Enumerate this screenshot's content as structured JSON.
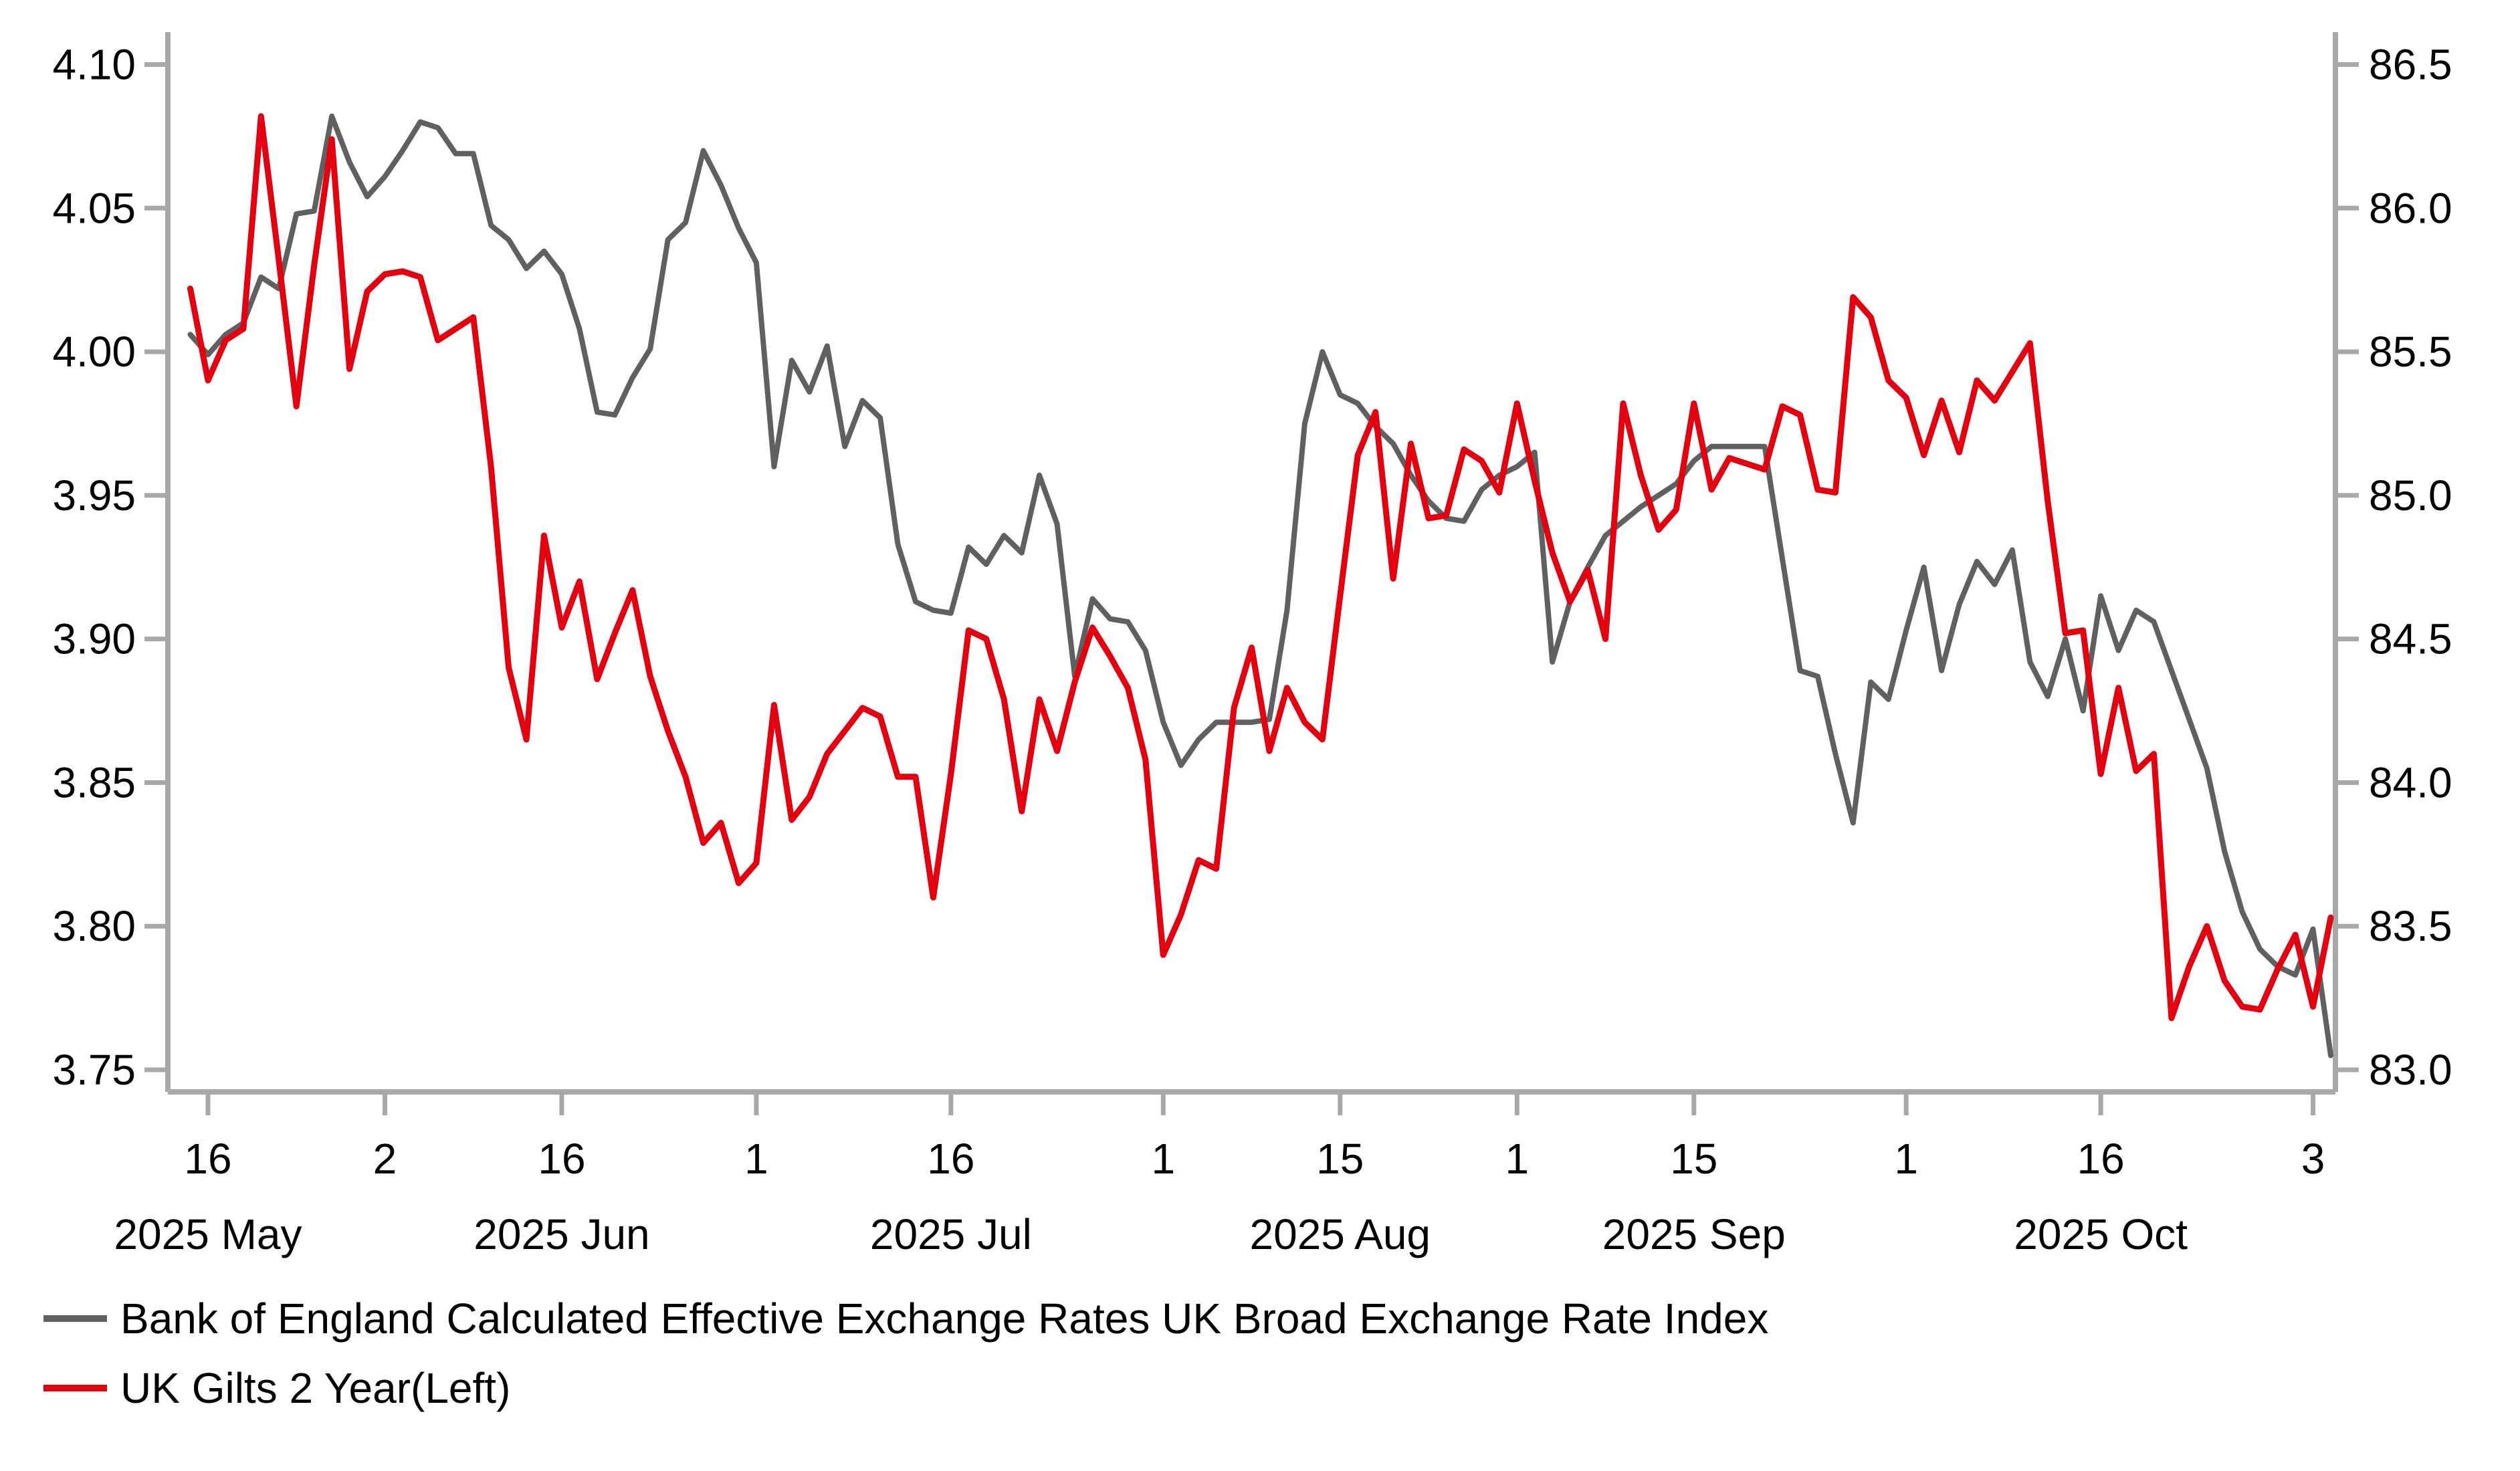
{
  "chart_data": {
    "type": "line",
    "title": "",
    "grid": false,
    "legend_position": "bottom-left",
    "categories": [
      "2025-05-15",
      "2025-05-16",
      "2025-05-19",
      "2025-05-20",
      "2025-05-21",
      "2025-05-22",
      "2025-05-23",
      "2025-05-27",
      "2025-05-28",
      "2025-05-29",
      "2025-05-30",
      "2025-06-02",
      "2025-06-03",
      "2025-06-04",
      "2025-06-05",
      "2025-06-06",
      "2025-06-09",
      "2025-06-10",
      "2025-06-11",
      "2025-06-12",
      "2025-06-13",
      "2025-06-16",
      "2025-06-17",
      "2025-06-18",
      "2025-06-19",
      "2025-06-20",
      "2025-06-23",
      "2025-06-24",
      "2025-06-25",
      "2025-06-26",
      "2025-06-27",
      "2025-06-30",
      "2025-07-01",
      "2025-07-02",
      "2025-07-03",
      "2025-07-04",
      "2025-07-07",
      "2025-07-08",
      "2025-07-09",
      "2025-07-10",
      "2025-07-11",
      "2025-07-14",
      "2025-07-15",
      "2025-07-16",
      "2025-07-17",
      "2025-07-18",
      "2025-07-21",
      "2025-07-22",
      "2025-07-23",
      "2025-07-24",
      "2025-07-25",
      "2025-07-28",
      "2025-07-29",
      "2025-07-30",
      "2025-07-31",
      "2025-08-01",
      "2025-08-04",
      "2025-08-05",
      "2025-08-06",
      "2025-08-07",
      "2025-08-08",
      "2025-08-11",
      "2025-08-12",
      "2025-08-13",
      "2025-08-14",
      "2025-08-15",
      "2025-08-18",
      "2025-08-19",
      "2025-08-20",
      "2025-08-21",
      "2025-08-22",
      "2025-08-26",
      "2025-08-27",
      "2025-08-28",
      "2025-08-29",
      "2025-09-01",
      "2025-09-02",
      "2025-09-03",
      "2025-09-04",
      "2025-09-05",
      "2025-09-08",
      "2025-09-09",
      "2025-09-10",
      "2025-09-11",
      "2025-09-12",
      "2025-09-15",
      "2025-09-16",
      "2025-09-17",
      "2025-09-18",
      "2025-09-19",
      "2025-09-22",
      "2025-09-23",
      "2025-09-24",
      "2025-09-25",
      "2025-09-26",
      "2025-09-29",
      "2025-09-30",
      "2025-10-01",
      "2025-10-02",
      "2025-10-03",
      "2025-10-06",
      "2025-10-07",
      "2025-10-08",
      "2025-10-09",
      "2025-10-10",
      "2025-10-13",
      "2025-10-14",
      "2025-10-15",
      "2025-10-16",
      "2025-10-17",
      "2025-10-20",
      "2025-10-21",
      "2025-10-22",
      "2025-10-23",
      "2025-10-24",
      "2025-10-27",
      "2025-10-28",
      "2025-10-29",
      "2025-10-30",
      "2025-10-31",
      "2025-11-03",
      "2025-11-04"
    ],
    "series": [
      {
        "name": "Bank of England Calculated Effective Exchange Rates UK Broad Exchange Rate Index",
        "axis": "right",
        "color": "#606060",
        "stroke_width": 8,
        "values": [
          85.56,
          85.49,
          85.56,
          85.6,
          85.76,
          85.72,
          85.98,
          85.99,
          86.32,
          86.16,
          86.04,
          86.11,
          86.2,
          86.3,
          86.28,
          86.19,
          86.19,
          85.94,
          85.89,
          85.79,
          85.85,
          85.77,
          85.58,
          85.29,
          85.28,
          85.41,
          85.51,
          85.89,
          85.95,
          86.2,
          86.08,
          85.93,
          85.81,
          85.1,
          85.47,
          85.36,
          85.52,
          85.17,
          85.33,
          85.27,
          84.83,
          84.63,
          84.6,
          84.59,
          84.82,
          84.76,
          84.86,
          84.8,
          85.07,
          84.9,
          84.37,
          84.64,
          84.57,
          84.56,
          84.46,
          84.21,
          84.06,
          84.15,
          84.21,
          84.21,
          84.21,
          84.22,
          84.6,
          85.25,
          85.5,
          85.35,
          85.32,
          85.24,
          85.18,
          85.07,
          84.98,
          84.92,
          84.91,
          85.02,
          85.07,
          85.1,
          85.15,
          84.42,
          84.63,
          84.75,
          84.86,
          84.91,
          84.96,
          85.0,
          85.04,
          85.12,
          85.17,
          85.17,
          85.17,
          85.17,
          84.78,
          84.39,
          84.37,
          84.1,
          83.86,
          84.35,
          84.29,
          84.53,
          84.75,
          84.39,
          84.62,
          84.77,
          84.69,
          84.81,
          84.42,
          84.3,
          84.5,
          84.25,
          84.65,
          84.46,
          84.6,
          84.56,
          84.39,
          84.22,
          84.05,
          83.76,
          83.55,
          83.42,
          83.36,
          83.33,
          83.49,
          83.05
        ]
      },
      {
        "name": "UK Gilts 2 Year(Left)",
        "axis": "left",
        "color": "#e4000f",
        "stroke_width": 9,
        "values": [
          4.022,
          3.99,
          4.004,
          4.008,
          4.082,
          4.032,
          3.981,
          4.03,
          4.074,
          3.994,
          4.021,
          4.027,
          4.028,
          4.026,
          4.004,
          4.008,
          4.012,
          3.96,
          3.89,
          3.865,
          3.936,
          3.904,
          3.92,
          3.886,
          3.902,
          3.917,
          3.887,
          3.868,
          3.852,
          3.829,
          3.836,
          3.815,
          3.822,
          3.877,
          3.837,
          3.845,
          3.86,
          3.868,
          3.876,
          3.873,
          3.852,
          3.852,
          3.81,
          3.853,
          3.903,
          3.9,
          3.879,
          3.84,
          3.879,
          3.861,
          3.885,
          3.904,
          3.894,
          3.883,
          3.858,
          3.79,
          3.804,
          3.823,
          3.82,
          3.876,
          3.897,
          3.861,
          3.883,
          3.871,
          3.865,
          3.915,
          3.964,
          3.979,
          3.921,
          3.968,
          3.942,
          3.943,
          3.966,
          3.962,
          3.951,
          3.982,
          3.955,
          3.93,
          3.913,
          3.924,
          3.9,
          3.982,
          3.957,
          3.938,
          3.945,
          3.982,
          3.952,
          3.963,
          3.961,
          3.959,
          3.981,
          3.978,
          3.952,
          3.951,
          4.019,
          4.012,
          3.99,
          3.984,
          3.964,
          3.983,
          3.965,
          3.99,
          3.983,
          3.993,
          4.003,
          3.948,
          3.902,
          3.903,
          3.853,
          3.883,
          3.854,
          3.86,
          3.768,
          3.786,
          3.8,
          3.781,
          3.772,
          3.771,
          3.785,
          3.797,
          3.772,
          3.803
        ]
      }
    ],
    "left_axis": {
      "min": 3.75,
      "max": 4.1,
      "tick_labels": [
        "4.10",
        "4.05",
        "4.00",
        "3.95",
        "3.90",
        "3.85",
        "3.80",
        "3.75"
      ],
      "tick_values": [
        4.1,
        4.05,
        4.0,
        3.95,
        3.9,
        3.85,
        3.8,
        3.75
      ]
    },
    "right_axis": {
      "min": 83.0,
      "max": 86.5,
      "tick_labels": [
        "86.5",
        "86.0",
        "85.5",
        "85.0",
        "84.5",
        "84.0",
        "83.5",
        "83.0"
      ],
      "tick_values": [
        86.5,
        86.0,
        85.5,
        85.0,
        84.5,
        84.0,
        83.5,
        83.0
      ]
    },
    "x_axis": {
      "day_ticks": [
        {
          "label": "16",
          "index": 1
        },
        {
          "label": "2",
          "index": 11
        },
        {
          "label": "16",
          "index": 21
        },
        {
          "label": "1",
          "index": 32
        },
        {
          "label": "16",
          "index": 43
        },
        {
          "label": "1",
          "index": 55
        },
        {
          "label": "15",
          "index": 65
        },
        {
          "label": "1",
          "index": 75
        },
        {
          "label": "15",
          "index": 85
        },
        {
          "label": "1",
          "index": 97
        },
        {
          "label": "16",
          "index": 108
        },
        {
          "label": "3",
          "index": 120
        }
      ],
      "month_labels": [
        {
          "label": "2025 May",
          "index": 1
        },
        {
          "label": "2025 Jun",
          "index": 21
        },
        {
          "label": "2025 Jul",
          "index": 43
        },
        {
          "label": "2025 Aug",
          "index": 65
        },
        {
          "label": "2025 Sep",
          "index": 85
        },
        {
          "label": "2025 Oct",
          "index": 108
        }
      ]
    }
  },
  "legend": {
    "items": [
      {
        "label": "Bank of England Calculated Effective Exchange Rates UK Broad Exchange Rate Index",
        "color": "#606060"
      },
      {
        "label": "UK Gilts 2 Year(Left)",
        "color": "#e4000f"
      }
    ]
  },
  "colors": {
    "axis": "#a8a8a8",
    "text": "#000000",
    "background": "#ffffff"
  }
}
